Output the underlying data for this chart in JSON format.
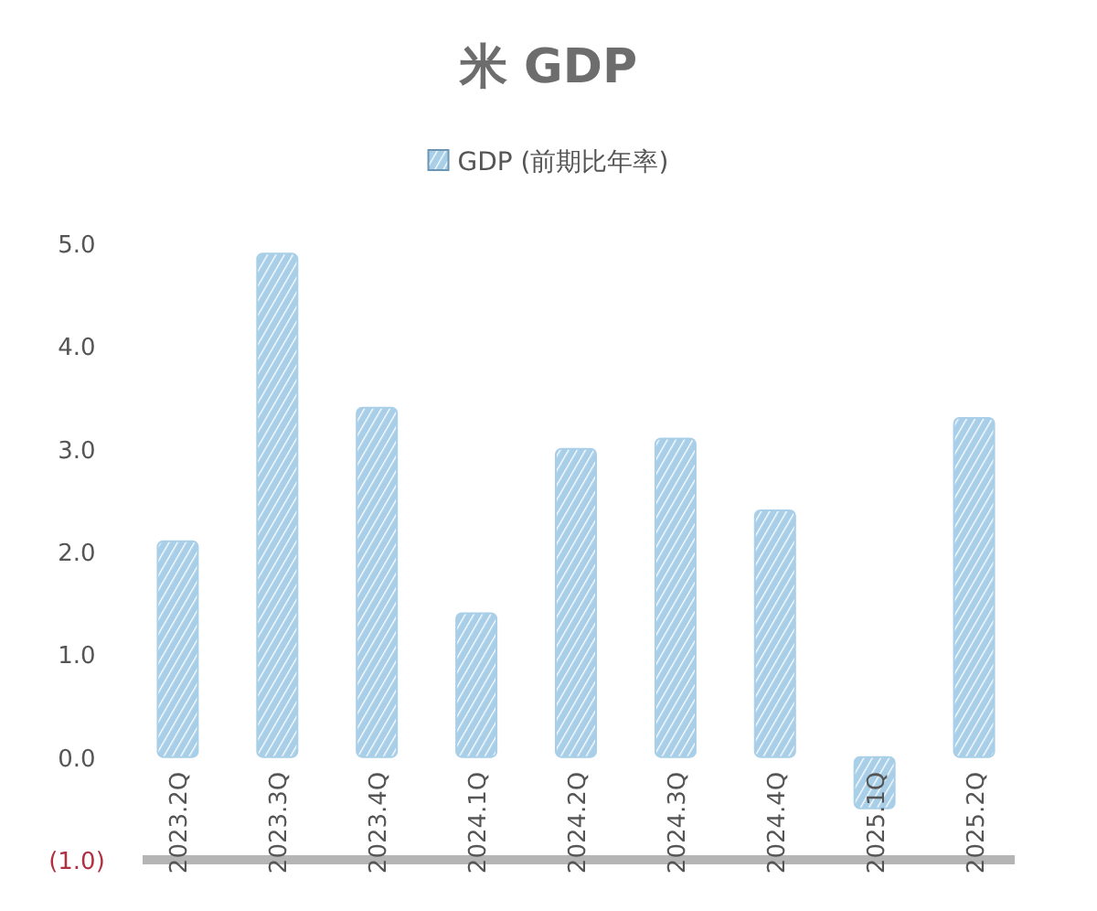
{
  "chart_data": {
    "type": "bar",
    "title": "米 GDP",
    "categories": [
      "2023.2Q",
      "2023.3Q",
      "2023.4Q",
      "2024.1Q",
      "2024.2Q",
      "2024.3Q",
      "2024.4Q",
      "2025.1Q",
      "2025.2Q"
    ],
    "series": [
      {
        "name": "GDP (前期比年率)",
        "color": "#a9cfe8",
        "values": [
          2.1,
          4.9,
          3.4,
          1.4,
          3.0,
          3.1,
          2.4,
          -0.5,
          3.3
        ]
      }
    ],
    "ylim": [
      -1,
      5
    ],
    "yticks": [
      {
        "value": -1,
        "label": "(1.0)"
      },
      {
        "value": 0,
        "label": "0.0"
      },
      {
        "value": 1,
        "label": "1.0"
      },
      {
        "value": 2,
        "label": "2.0"
      },
      {
        "value": 3,
        "label": "3.0"
      },
      {
        "value": 4,
        "label": "4.0"
      },
      {
        "value": 5,
        "label": "5.0"
      }
    ],
    "legend": "top",
    "grid": false
  }
}
